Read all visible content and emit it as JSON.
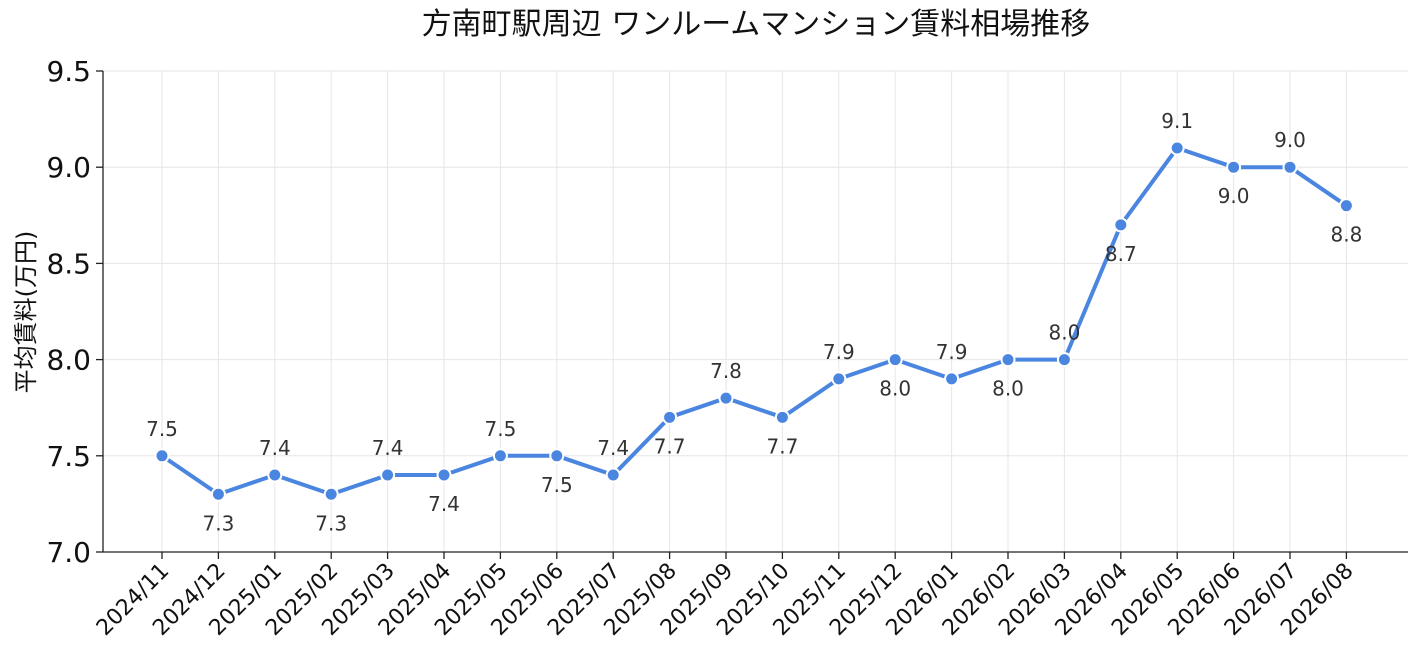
{
  "chart_data": {
    "type": "line",
    "title": "方南町駅周辺 ワンルームマンション賃料相場推移",
    "xlabel": "",
    "ylabel": "平均賃料(万円)",
    "ylim": [
      7.0,
      9.5
    ],
    "yticks": [
      "7.0",
      "7.5",
      "8.0",
      "8.5",
      "9.0",
      "9.5"
    ],
    "grid": true,
    "color": "#4a86e0",
    "categories": [
      "2024/11",
      "2024/12",
      "2025/01",
      "2025/02",
      "2025/03",
      "2025/04",
      "2025/05",
      "2025/06",
      "2025/07",
      "2025/08",
      "2025/09",
      "2025/10",
      "2025/11",
      "2025/12",
      "2026/01",
      "2026/02",
      "2026/03",
      "2026/04",
      "2026/05",
      "2026/06",
      "2026/07",
      "2026/08"
    ],
    "values": [
      7.5,
      7.3,
      7.4,
      7.3,
      7.4,
      7.4,
      7.5,
      7.5,
      7.4,
      7.7,
      7.8,
      7.7,
      7.9,
      8.0,
      7.9,
      8.0,
      8.0,
      8.7,
      9.1,
      9.0,
      9.0,
      8.8
    ],
    "labels": [
      "7.5",
      "7.3",
      "7.4",
      "7.3",
      "7.4",
      "7.4",
      "7.5",
      "7.5",
      "7.4",
      "7.7",
      "7.8",
      "7.7",
      "7.9",
      "8.0",
      "7.9",
      "8.0",
      "8.0",
      "8.7",
      "9.1",
      "9.0",
      "9.0",
      "8.8"
    ],
    "label_positions": [
      "above",
      "below",
      "above",
      "below",
      "above",
      "below",
      "above",
      "below",
      "above",
      "below",
      "above",
      "below",
      "above",
      "below",
      "above",
      "below",
      "above",
      "below",
      "above",
      "below",
      "above",
      "below"
    ]
  }
}
